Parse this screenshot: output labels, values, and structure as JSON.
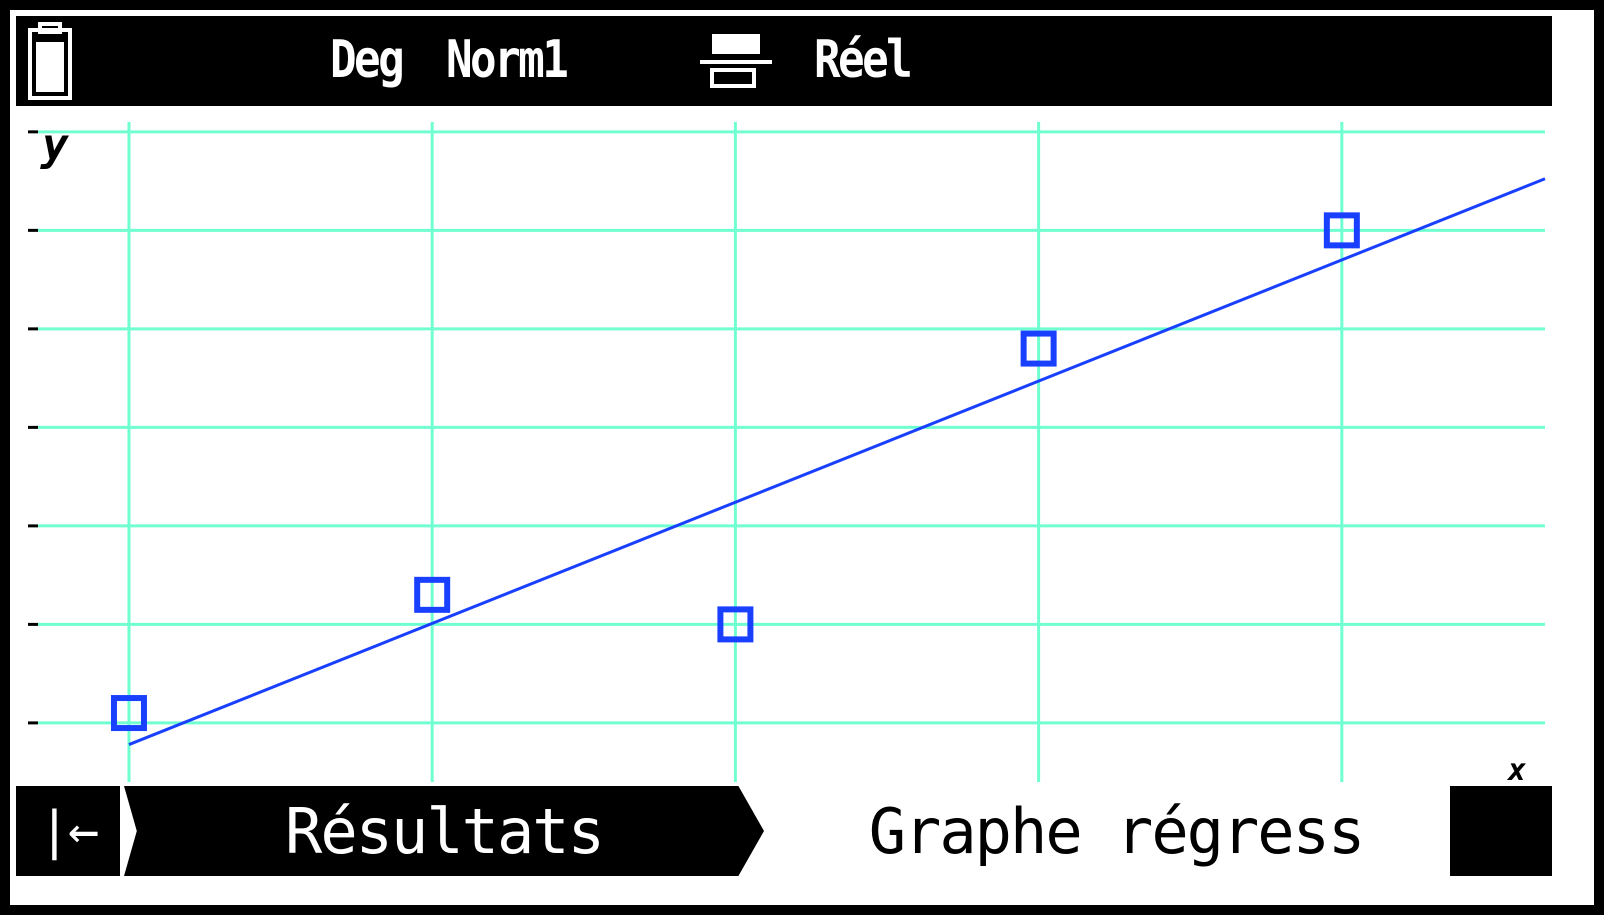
{
  "status_bar": {
    "battery_icon": "battery-full-icon",
    "angle_mode": "Deg",
    "display_mode": "Norm1",
    "fraction_icon": "fraction-format-icon",
    "complex_mode": "Réel"
  },
  "chart_data": {
    "type": "scatter",
    "title": "",
    "xlabel": "x",
    "ylabel": "y",
    "grid": true,
    "grid_color": "#70ffd0",
    "point_color": "#1a40ff",
    "marker": "hollow-square",
    "x": [
      1,
      2,
      3,
      4,
      5
    ],
    "y": [
      1.1,
      2.3,
      2.0,
      4.8,
      6.0
    ],
    "regression": {
      "type": "linear",
      "color": "#1a40ff"
    },
    "xlim": [
      0.7,
      5.67
    ],
    "ylim": [
      0.4,
      7.1
    ]
  },
  "bottom_bar": {
    "back_icon": "back-to-start-icon",
    "tabs": [
      {
        "label": "Résultats",
        "selected": false
      },
      {
        "label": "Graphe régress",
        "selected": true
      }
    ]
  }
}
